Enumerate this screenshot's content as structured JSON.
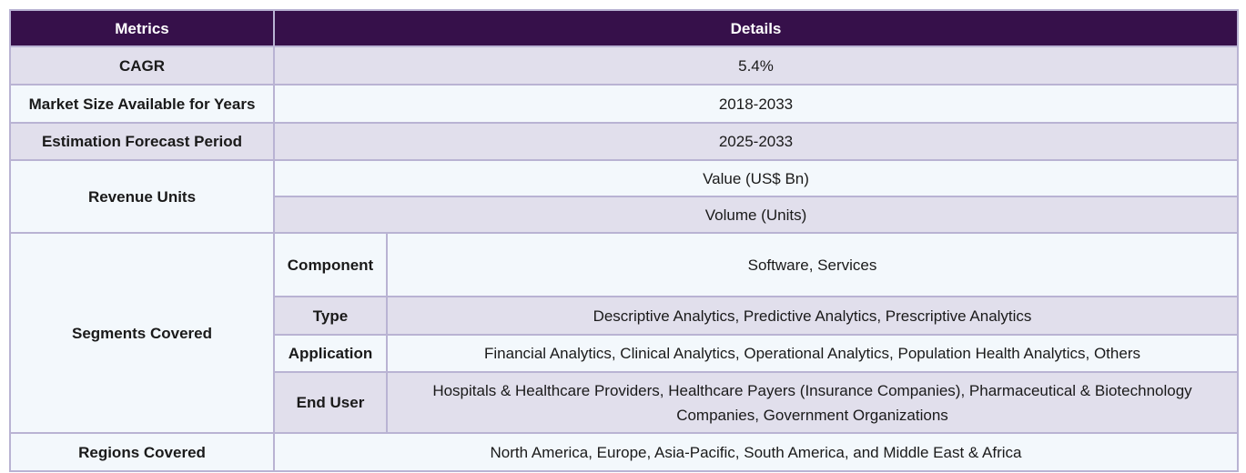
{
  "headers": {
    "metrics": "Metrics",
    "details": "Details"
  },
  "rows": {
    "cagr": {
      "label": "CAGR",
      "value": "5.4%"
    },
    "market_size": {
      "label": "Market Size Available for Years",
      "value": "2018-2033"
    },
    "forecast": {
      "label": "Estimation Forecast Period",
      "value": "2025-2033"
    },
    "revenue_units": {
      "label": "Revenue Units",
      "values": [
        "Value (US$ Bn)",
        "Volume (Units)"
      ]
    },
    "segments": {
      "label": "Segments Covered",
      "items": [
        {
          "name": "Component",
          "value": "Software, Services"
        },
        {
          "name": "Type",
          "value": "Descriptive Analytics, Predictive Analytics, Prescriptive Analytics"
        },
        {
          "name": "Application",
          "value": "Financial Analytics, Clinical Analytics, Operational Analytics, Population Health Analytics, Others"
        },
        {
          "name": "End User",
          "value": "Hospitals & Healthcare Providers, Healthcare Payers (Insurance Companies), Pharmaceutical & Biotechnology Companies, Government Organizations"
        }
      ]
    },
    "regions": {
      "label": "Regions Covered",
      "value": "North America, Europe, Asia-Pacific, South America, and Middle East & Africa"
    }
  }
}
